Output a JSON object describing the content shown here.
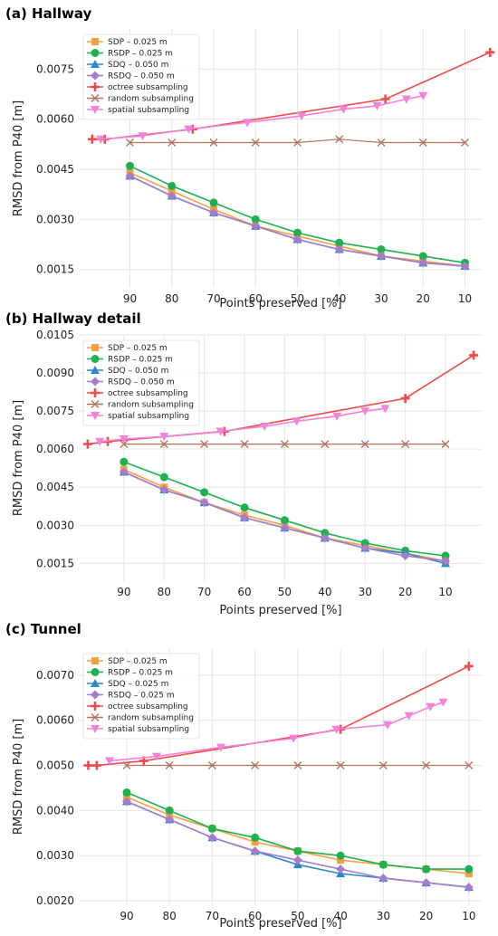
{
  "colors": {
    "SDP": "#f5a142",
    "RSDP": "#1eb14f",
    "SDQ": "#2b88c9",
    "RSDQ": "#a67ccc",
    "octree": "#f04a4a",
    "random": "#b5735f",
    "spatial": "#f283d8"
  },
  "chart_data": [
    {
      "type": "line",
      "title": "(a) Hallway",
      "xlabel": "Points preserved [%]",
      "ylabel": "RMSD from P40 [m]",
      "x_reversed": true,
      "xlim": [
        102,
        6
      ],
      "ylim": [
        0.00095,
        0.0087
      ],
      "xticks": [
        90,
        80,
        70,
        60,
        50,
        40,
        30,
        20,
        10
      ],
      "yticks": [
        0.0015,
        0.003,
        0.0045,
        0.006,
        0.0075
      ],
      "ytick_labels": [
        "0.0015",
        "0.0030",
        "0.0045",
        "0.0060",
        "0.0075"
      ],
      "legend_position": "top-left",
      "series": [
        {
          "name": "SDP – 0.025 m",
          "key": "SDP",
          "marker": "square",
          "x": [
            90,
            80,
            70,
            60,
            50,
            40,
            30,
            20,
            10
          ],
          "y": [
            0.0044,
            0.00385,
            0.0033,
            0.0028,
            0.0025,
            0.0022,
            0.0019,
            0.00175,
            0.0016
          ]
        },
        {
          "name": "RSDP – 0.025 m",
          "key": "RSDP",
          "marker": "circle",
          "x": [
            90,
            80,
            70,
            60,
            50,
            40,
            30,
            20,
            10
          ],
          "y": [
            0.0046,
            0.004,
            0.0035,
            0.003,
            0.0026,
            0.0023,
            0.0021,
            0.0019,
            0.0017
          ]
        },
        {
          "name": "SDQ – 0.050 m",
          "key": "SDQ",
          "marker": "triangle",
          "x": [
            90,
            80,
            70,
            60,
            50,
            40,
            30,
            20,
            10
          ],
          "y": [
            0.0043,
            0.0037,
            0.0032,
            0.0028,
            0.0024,
            0.0021,
            0.0019,
            0.0017,
            0.0016
          ]
        },
        {
          "name": "RSDQ – 0.050 m",
          "key": "RSDQ",
          "marker": "diamond",
          "x": [
            90,
            80,
            70,
            60,
            50,
            40,
            30,
            20,
            10
          ],
          "y": [
            0.0043,
            0.0037,
            0.0032,
            0.0028,
            0.0024,
            0.0021,
            0.0019,
            0.0017,
            0.0016
          ]
        },
        {
          "name": "octree subsampling",
          "key": "octree",
          "marker": "plus",
          "x": [
            99,
            96,
            75,
            29,
            4
          ],
          "y": [
            0.0054,
            0.0054,
            0.0057,
            0.0066,
            0.008
          ]
        },
        {
          "name": "random subsampling",
          "key": "random",
          "marker": "x",
          "x": [
            90,
            80,
            70,
            60,
            50,
            40,
            30,
            20,
            10
          ],
          "y": [
            0.0053,
            0.0053,
            0.0053,
            0.0053,
            0.0053,
            0.0054,
            0.0053,
            0.0053,
            0.0053
          ]
        },
        {
          "name": "spatial subsampling",
          "key": "spatial",
          "marker": "tri_down",
          "x": [
            97,
            87,
            76,
            62,
            49,
            39,
            31,
            24,
            20
          ],
          "y": [
            0.0054,
            0.0055,
            0.0057,
            0.0059,
            0.0061,
            0.0063,
            0.0064,
            0.0066,
            0.0067
          ]
        }
      ]
    },
    {
      "type": "line",
      "title": "(b) Hallway detail",
      "xlabel": "Points preserved [%]",
      "ylabel": "RMSD from P40 [m]",
      "x_reversed": true,
      "xlim": [
        101,
        1
      ],
      "ylim": [
        0.0008,
        0.0105
      ],
      "xticks": [
        90,
        80,
        70,
        60,
        50,
        40,
        30,
        20,
        10
      ],
      "yticks": [
        0.0015,
        0.003,
        0.0045,
        0.006,
        0.0075,
        0.009,
        0.0105
      ],
      "ytick_labels": [
        "0.0015",
        "0.0030",
        "0.0045",
        "0.0060",
        "0.0075",
        "0.0090",
        "0.0105"
      ],
      "legend_position": "top-left",
      "series": [
        {
          "name": "SDP – 0.025 m",
          "key": "SDP",
          "marker": "square",
          "x": [
            90,
            80,
            70,
            60,
            50,
            40,
            30,
            20,
            10
          ],
          "y": [
            0.0052,
            0.0045,
            0.0039,
            0.0034,
            0.003,
            0.0025,
            0.0022,
            0.0019,
            0.0016
          ]
        },
        {
          "name": "RSDP – 0.025 m",
          "key": "RSDP",
          "marker": "circle",
          "x": [
            90,
            80,
            70,
            60,
            50,
            40,
            30,
            20,
            10
          ],
          "y": [
            0.0055,
            0.0049,
            0.0043,
            0.0037,
            0.0032,
            0.0027,
            0.0023,
            0.002,
            0.0018
          ]
        },
        {
          "name": "SDQ – 0.050 m",
          "key": "SDQ",
          "marker": "triangle",
          "x": [
            90,
            80,
            70,
            60,
            50,
            40,
            30,
            20,
            10
          ],
          "y": [
            0.0051,
            0.0044,
            0.0039,
            0.0033,
            0.0029,
            0.0025,
            0.0021,
            0.0019,
            0.0015
          ]
        },
        {
          "name": "RSDQ – 0.050 m",
          "key": "RSDQ",
          "marker": "diamond",
          "x": [
            90,
            80,
            70,
            60,
            50,
            40,
            30,
            20,
            10
          ],
          "y": [
            0.0051,
            0.0044,
            0.0039,
            0.0033,
            0.0029,
            0.0025,
            0.0021,
            0.0018,
            0.0016
          ]
        },
        {
          "name": "octree subsampling",
          "key": "octree",
          "marker": "plus",
          "x": [
            99,
            94,
            65,
            20,
            3
          ],
          "y": [
            0.0062,
            0.0063,
            0.0067,
            0.008,
            0.0097
          ]
        },
        {
          "name": "random subsampling",
          "key": "random",
          "marker": "x",
          "x": [
            90,
            80,
            70,
            60,
            50,
            40,
            30,
            20,
            10
          ],
          "y": [
            0.0062,
            0.0062,
            0.0062,
            0.0062,
            0.0062,
            0.0062,
            0.0062,
            0.0062,
            0.0062
          ]
        },
        {
          "name": "spatial subsampling",
          "key": "spatial",
          "marker": "tri_down",
          "x": [
            96,
            90,
            80,
            66,
            55,
            47,
            37,
            30,
            25
          ],
          "y": [
            0.0063,
            0.0064,
            0.0065,
            0.0067,
            0.0069,
            0.0071,
            0.0073,
            0.0075,
            0.0076
          ]
        }
      ]
    },
    {
      "type": "line",
      "title": "(c) Tunnel",
      "xlabel": "Points preserved [%]",
      "ylabel": "RMSD from P40 [m]",
      "x_reversed": true,
      "xlim": [
        101,
        7
      ],
      "ylim": [
        0.0019,
        0.0076
      ],
      "xticks": [
        90,
        80,
        70,
        60,
        50,
        40,
        30,
        20,
        10
      ],
      "yticks": [
        0.002,
        0.003,
        0.004,
        0.005,
        0.006,
        0.007
      ],
      "ytick_labels": [
        "0.0020",
        "0.0030",
        "0.0040",
        "0.0050",
        "0.0060",
        "0.0070"
      ],
      "legend_position": "top-left",
      "series": [
        {
          "name": "SDP – 0.025 m",
          "key": "SDP",
          "marker": "square",
          "x": [
            90,
            80,
            70,
            60,
            50,
            40,
            30,
            20,
            10
          ],
          "y": [
            0.0043,
            0.0039,
            0.0036,
            0.0033,
            0.0031,
            0.0029,
            0.0028,
            0.0027,
            0.0026
          ]
        },
        {
          "name": "RSDP – 0.025 m",
          "key": "RSDP",
          "marker": "circle",
          "x": [
            90,
            80,
            70,
            60,
            50,
            40,
            30,
            20,
            10
          ],
          "y": [
            0.0044,
            0.004,
            0.0036,
            0.0034,
            0.0031,
            0.003,
            0.0028,
            0.0027,
            0.0027
          ]
        },
        {
          "name": "SDQ – 0.025 m",
          "key": "SDQ",
          "marker": "triangle",
          "x": [
            90,
            80,
            70,
            60,
            50,
            40,
            30,
            20,
            10
          ],
          "y": [
            0.0042,
            0.0038,
            0.0034,
            0.0031,
            0.0028,
            0.0026,
            0.0025,
            0.0024,
            0.0023
          ]
        },
        {
          "name": "RSDQ – 0.025 m",
          "key": "RSDQ",
          "marker": "diamond",
          "x": [
            90,
            80,
            70,
            60,
            50,
            40,
            30,
            20,
            10
          ],
          "y": [
            0.0042,
            0.0038,
            0.0034,
            0.0031,
            0.0029,
            0.0027,
            0.0025,
            0.0024,
            0.0023
          ]
        },
        {
          "name": "octree subsampling",
          "key": "octree",
          "marker": "plus",
          "x": [
            99,
            97,
            86,
            40,
            10
          ],
          "y": [
            0.005,
            0.005,
            0.0051,
            0.0058,
            0.0072
          ]
        },
        {
          "name": "random subsampling",
          "key": "random",
          "marker": "x",
          "x": [
            90,
            80,
            70,
            60,
            50,
            40,
            30,
            20,
            10
          ],
          "y": [
            0.005,
            0.005,
            0.005,
            0.005,
            0.005,
            0.005,
            0.005,
            0.005,
            0.005
          ]
        },
        {
          "name": "spatial subsampling",
          "key": "spatial",
          "marker": "tri_down",
          "x": [
            94,
            83,
            68,
            51,
            41,
            29,
            24,
            19,
            16
          ],
          "y": [
            0.0051,
            0.0052,
            0.0054,
            0.0056,
            0.0058,
            0.0059,
            0.0061,
            0.0063,
            0.0064
          ]
        }
      ]
    }
  ]
}
